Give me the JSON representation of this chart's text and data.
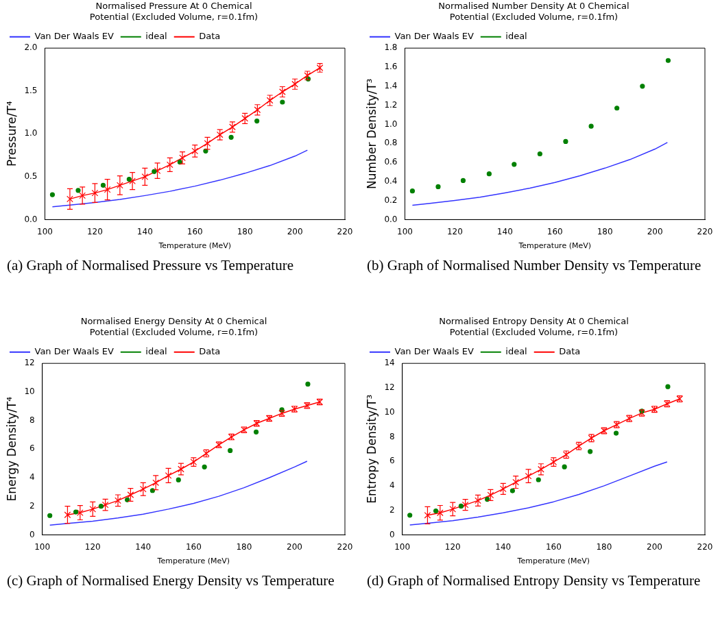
{
  "chart_data": [
    {
      "type": "line",
      "title": "Normalised Pressure At 0 Chemical\nPotential (Excluded Volume, r=0.1fm)",
      "xlabel": "Temperature (MeV)",
      "ylabel": "Pressure/T⁴",
      "xlim": [
        100,
        220
      ],
      "xticks": [
        100,
        120,
        140,
        160,
        180,
        200,
        220
      ],
      "ylim": [
        0,
        2
      ],
      "yticks": [
        {
          "value": 0,
          "label": "0.0"
        },
        {
          "value": 0.5,
          "label": "0.5"
        },
        {
          "value": 1,
          "label": "1.0"
        },
        {
          "value": 1.5,
          "label": "1.5"
        },
        {
          "value": 2,
          "label": "2.0"
        }
      ],
      "grid": false,
      "legend": "top left",
      "annotations": [
        "(a) Graph of Normalised Pressure vs Temperature"
      ],
      "series": [
        {
          "name": "Van Der Waals EV",
          "type": "line",
          "marker": "none",
          "color": "#3333ff",
          "x": [
            103,
            110,
            120,
            130,
            140,
            150,
            160,
            170,
            180,
            190,
            200,
            205
          ],
          "values": [
            0.15,
            0.17,
            0.2,
            0.235,
            0.28,
            0.33,
            0.39,
            0.46,
            0.54,
            0.63,
            0.74,
            0.81
          ]
        },
        {
          "name": "ideal",
          "type": "scatter",
          "marker": "circle",
          "color": "#008000",
          "x": [
            103,
            113.3,
            123.3,
            133.7,
            143.7,
            154,
            164.3,
            174.5,
            184.8,
            195,
            205.3
          ],
          "values": [
            0.29,
            0.34,
            0.4,
            0.47,
            0.56,
            0.67,
            0.8,
            0.96,
            1.15,
            1.37,
            1.64
          ]
        },
        {
          "name": "Data",
          "type": "line",
          "marker": "cross",
          "color": "#ff0000",
          "x": [
            110,
            115,
            120,
            125,
            130,
            135,
            140,
            145,
            150,
            155,
            160,
            165,
            170,
            175,
            180,
            185,
            190,
            195,
            200,
            205,
            210
          ],
          "values": [
            0.24,
            0.28,
            0.31,
            0.35,
            0.4,
            0.45,
            0.5,
            0.57,
            0.64,
            0.72,
            0.8,
            0.89,
            0.99,
            1.08,
            1.18,
            1.28,
            1.39,
            1.49,
            1.58,
            1.68,
            1.77
          ],
          "errors": [
            0.12,
            0.1,
            0.11,
            0.12,
            0.11,
            0.1,
            0.1,
            0.09,
            0.08,
            0.07,
            0.07,
            0.07,
            0.06,
            0.06,
            0.06,
            0.06,
            0.06,
            0.06,
            0.06,
            0.05,
            0.05
          ]
        }
      ]
    },
    {
      "type": "line",
      "title": "Normalised Number Density At 0 Chemical\nPotential (Excluded Volume, r=0.1fm)",
      "xlabel": "Temperature (MeV)",
      "ylabel": "Number Density/T³",
      "xlim": [
        100,
        220
      ],
      "xticks": [
        100,
        120,
        140,
        160,
        180,
        200,
        220
      ],
      "ylim": [
        0,
        1.8
      ],
      "yticks": [
        {
          "value": 0,
          "label": "0.0"
        },
        {
          "value": 0.2,
          "label": "0.2"
        },
        {
          "value": 0.4,
          "label": "0.4"
        },
        {
          "value": 0.6,
          "label": "0.6"
        },
        {
          "value": 0.8,
          "label": "0.8"
        },
        {
          "value": 1,
          "label": "1.0"
        },
        {
          "value": 1.2,
          "label": "1.2"
        },
        {
          "value": 1.4,
          "label": "1.4"
        },
        {
          "value": 1.6,
          "label": "1.6"
        },
        {
          "value": 1.8,
          "label": "1.8"
        }
      ],
      "grid": false,
      "legend": "top left",
      "annotations": [
        "(b) Graph of Normalised Number Density vs Temperature"
      ],
      "series": [
        {
          "name": "Van Der Waals EV",
          "type": "line",
          "marker": "none",
          "color": "#3333ff",
          "x": [
            103,
            110,
            120,
            130,
            140,
            150,
            160,
            170,
            180,
            190,
            200,
            205
          ],
          "values": [
            0.15,
            0.17,
            0.2,
            0.235,
            0.28,
            0.33,
            0.39,
            0.46,
            0.54,
            0.63,
            0.74,
            0.81
          ]
        },
        {
          "name": "ideal",
          "type": "scatter",
          "marker": "circle",
          "color": "#008000",
          "x": [
            103,
            113.3,
            123.3,
            133.7,
            143.7,
            154,
            164.3,
            174.5,
            184.8,
            195,
            205.3
          ],
          "values": [
            0.3,
            0.345,
            0.41,
            0.48,
            0.58,
            0.69,
            0.82,
            0.98,
            1.17,
            1.4,
            1.67
          ]
        }
      ]
    },
    {
      "type": "line",
      "title": "Normalised Energy Density At 0 Chemical\nPotential (Excluded Volume, r=0.1fm)",
      "xlabel": "Temperature (MeV)",
      "ylabel": "Energy Density/T⁴",
      "xlim": [
        100,
        220
      ],
      "xticks": [
        100,
        120,
        140,
        160,
        180,
        200,
        220
      ],
      "ylim": [
        0,
        12
      ],
      "yticks": [
        0,
        2,
        4,
        6,
        8,
        10,
        12
      ],
      "grid": false,
      "legend": "top left",
      "annotations": [
        "(c) Graph of Normalised Energy Density vs Temperature"
      ],
      "series": [
        {
          "name": "Van Der Waals EV",
          "type": "line",
          "marker": "none",
          "color": "#3333ff",
          "x": [
            103,
            110,
            120,
            130,
            140,
            150,
            160,
            170,
            180,
            190,
            200,
            205
          ],
          "values": [
            0.68,
            0.8,
            0.95,
            1.18,
            1.45,
            1.8,
            2.2,
            2.7,
            3.3,
            4.0,
            4.75,
            5.15
          ]
        },
        {
          "name": "ideal",
          "type": "scatter",
          "marker": "circle",
          "color": "#008000",
          "x": [
            103,
            113.3,
            123.3,
            133.7,
            143.7,
            154,
            164.3,
            174.5,
            184.8,
            195,
            205.3
          ],
          "values": [
            1.35,
            1.6,
            2.0,
            2.45,
            3.1,
            3.85,
            4.75,
            5.9,
            7.2,
            8.75,
            10.55
          ]
        },
        {
          "name": "Data",
          "type": "line",
          "marker": "cross",
          "color": "#ff0000",
          "x": [
            110,
            115,
            120,
            125,
            130,
            135,
            140,
            145,
            150,
            155,
            160,
            165,
            170,
            175,
            180,
            185,
            190,
            195,
            200,
            205,
            210
          ],
          "values": [
            1.4,
            1.55,
            1.8,
            2.1,
            2.4,
            2.8,
            3.2,
            3.65,
            4.15,
            4.6,
            5.1,
            5.7,
            6.3,
            6.85,
            7.35,
            7.8,
            8.15,
            8.5,
            8.8,
            9.05,
            9.3
          ],
          "errors": [
            0.6,
            0.5,
            0.5,
            0.4,
            0.4,
            0.45,
            0.45,
            0.5,
            0.5,
            0.4,
            0.3,
            0.25,
            0.2,
            0.2,
            0.2,
            0.2,
            0.2,
            0.2,
            0.2,
            0.2,
            0.2
          ]
        }
      ]
    },
    {
      "type": "line",
      "title": "Normalised Entropy Density At 0 Chemical\nPotential (Excluded Volume, r=0.1fm)",
      "xlabel": "Temperature (MeV)",
      "ylabel": "Entropy Density/T³",
      "xlim": [
        100,
        220
      ],
      "xticks": [
        100,
        120,
        140,
        160,
        180,
        200,
        220
      ],
      "ylim": [
        0,
        14
      ],
      "yticks": [
        0,
        2,
        4,
        6,
        8,
        10,
        12,
        14
      ],
      "grid": false,
      "legend": "top left",
      "annotations": [
        "(d) Graph of Normalised Entropy Density vs Temperature"
      ],
      "series": [
        {
          "name": "Van Der Waals EV",
          "type": "line",
          "marker": "none",
          "color": "#3333ff",
          "x": [
            103,
            110,
            120,
            130,
            140,
            150,
            160,
            170,
            180,
            190,
            200,
            205
          ],
          "values": [
            0.8,
            0.95,
            1.15,
            1.45,
            1.8,
            2.2,
            2.7,
            3.3,
            4.0,
            4.8,
            5.6,
            5.95
          ]
        },
        {
          "name": "ideal",
          "type": "scatter",
          "marker": "circle",
          "color": "#008000",
          "x": [
            103,
            113.3,
            123.3,
            133.7,
            143.7,
            154,
            164.3,
            174.5,
            184.8,
            195,
            205.3
          ],
          "values": [
            1.6,
            1.95,
            2.35,
            2.9,
            3.6,
            4.5,
            5.55,
            6.8,
            8.3,
            10.1,
            12.1
          ]
        },
        {
          "name": "Data",
          "type": "line",
          "marker": "cross",
          "color": "#ff0000",
          "x": [
            110,
            115,
            120,
            125,
            130,
            135,
            140,
            145,
            150,
            155,
            160,
            165,
            170,
            175,
            180,
            185,
            190,
            195,
            200,
            205,
            210
          ],
          "values": [
            1.6,
            1.8,
            2.1,
            2.45,
            2.8,
            3.25,
            3.75,
            4.3,
            4.8,
            5.35,
            5.95,
            6.55,
            7.25,
            7.9,
            8.5,
            9.0,
            9.5,
            9.95,
            10.25,
            10.7,
            11.1
          ],
          "errors": [
            0.7,
            0.6,
            0.55,
            0.45,
            0.45,
            0.45,
            0.45,
            0.5,
            0.55,
            0.45,
            0.35,
            0.3,
            0.3,
            0.3,
            0.25,
            0.25,
            0.25,
            0.25,
            0.25,
            0.25,
            0.25
          ]
        }
      ]
    }
  ]
}
